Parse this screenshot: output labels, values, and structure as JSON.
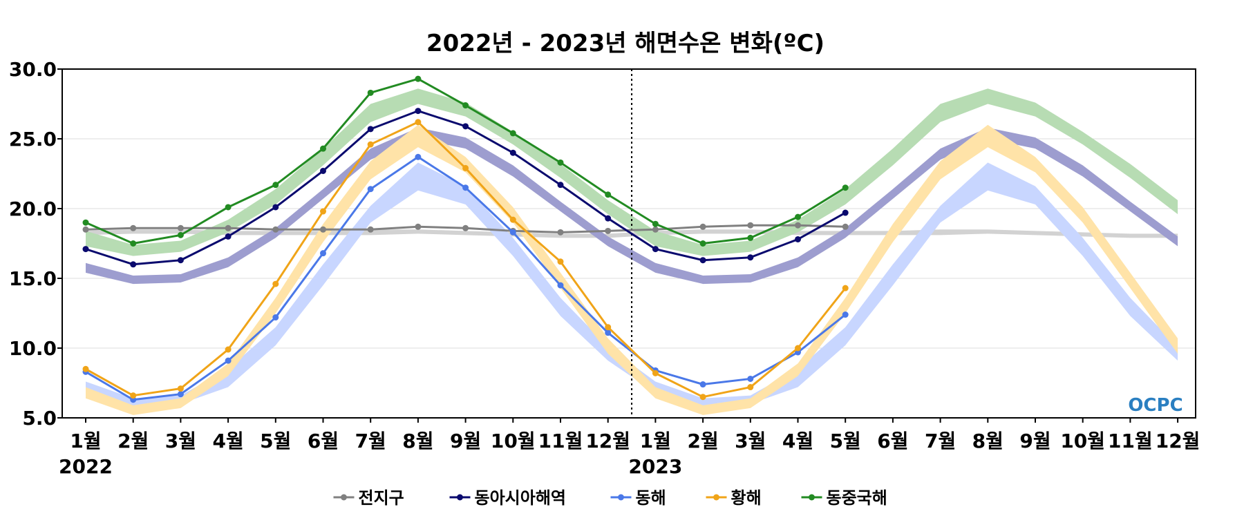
{
  "chart_data": {
    "type": "line",
    "title": "2022년 - 2023년 해면수온 변화(ºC)",
    "xlabel": "",
    "ylabel": "",
    "ylim": [
      5.0,
      30.0
    ],
    "yticks": [
      "5.0",
      "10.0",
      "15.0",
      "20.0",
      "25.0",
      "30.0"
    ],
    "ytick_values": [
      5,
      10,
      15,
      20,
      25,
      30
    ],
    "x_tick_labels": [
      "1월",
      "2월",
      "3월",
      "4월",
      "5월",
      "6월",
      "7월",
      "8월",
      "9월",
      "10월",
      "11월",
      "12월",
      "1월",
      "2월",
      "3월",
      "4월",
      "5월",
      "6월",
      "7월",
      "8월",
      "9월",
      "10월",
      "11월",
      "12월"
    ],
    "year_labels": [
      {
        "label": "2022",
        "month_index": 0
      },
      {
        "label": "2023",
        "month_index": 12
      }
    ],
    "year_divider_after_month": 11.5,
    "grid": true,
    "legend_position": "bottom-center",
    "series": [
      {
        "name": "전지구",
        "color": "#808080",
        "values": [
          18.5,
          18.6,
          18.6,
          18.6,
          18.5,
          18.5,
          18.5,
          18.7,
          18.6,
          18.4,
          18.3,
          18.4,
          18.5,
          18.7,
          18.8,
          18.8,
          18.7
        ]
      },
      {
        "name": "동아시아해역",
        "color": "#0a0a6e",
        "values": [
          17.1,
          16.0,
          16.3,
          18.0,
          20.1,
          22.7,
          25.7,
          27.0,
          25.9,
          24.0,
          21.7,
          19.3,
          17.1,
          16.3,
          16.5,
          17.8,
          19.7
        ]
      },
      {
        "name": "동해",
        "color": "#4a78e8",
        "values": [
          8.3,
          6.3,
          6.7,
          9.1,
          12.2,
          16.8,
          21.4,
          23.7,
          21.5,
          18.3,
          14.5,
          11.1,
          8.4,
          7.4,
          7.8,
          9.7,
          12.4
        ]
      },
      {
        "name": "황해",
        "color": "#f0a418",
        "values": [
          8.5,
          6.6,
          7.1,
          9.9,
          14.6,
          19.8,
          24.6,
          26.2,
          22.9,
          19.2,
          16.2,
          11.5,
          8.2,
          6.5,
          7.2,
          10.0,
          14.3
        ]
      },
      {
        "name": "동중국해",
        "color": "#228b22",
        "values": [
          19.0,
          17.5,
          18.1,
          20.1,
          21.7,
          24.3,
          28.3,
          29.3,
          27.4,
          25.4,
          23.3,
          21.0,
          18.9,
          17.5,
          17.9,
          19.4,
          21.5
        ]
      }
    ],
    "normal_bands": [
      {
        "series": "전지구",
        "color": "#d2d2d2",
        "low": [
          18.1,
          18.2,
          18.2,
          18.1,
          18.1,
          18.1,
          18.1,
          18.2,
          18.1,
          18.0,
          17.9,
          17.9,
          18.1,
          18.2,
          18.2,
          18.1,
          18.1,
          18.1,
          18.1,
          18.2,
          18.1,
          18.0,
          17.9,
          17.9
        ],
        "high": [
          18.4,
          18.5,
          18.5,
          18.4,
          18.4,
          18.4,
          18.5,
          18.5,
          18.4,
          18.3,
          18.2,
          18.2,
          18.4,
          18.5,
          18.5,
          18.4,
          18.4,
          18.4,
          18.5,
          18.5,
          18.4,
          18.3,
          18.2,
          18.2
        ]
      },
      {
        "series": "동아시아해역",
        "color": "#9d9dcf",
        "low": [
          15.4,
          14.6,
          14.7,
          15.8,
          17.9,
          20.7,
          23.5,
          25.0,
          24.3,
          22.3,
          19.8,
          17.3,
          15.4,
          14.6,
          14.7,
          15.8,
          17.9,
          20.7,
          23.5,
          25.0,
          24.3,
          22.3,
          19.8,
          17.3
        ],
        "high": [
          16.1,
          15.2,
          15.3,
          16.5,
          18.6,
          21.4,
          24.3,
          25.8,
          25.1,
          23.1,
          20.5,
          18.0,
          16.1,
          15.2,
          15.3,
          16.5,
          18.6,
          21.4,
          24.3,
          25.8,
          25.1,
          23.1,
          20.5,
          18.0
        ]
      },
      {
        "series": "동해",
        "color": "#c8d6ff",
        "low": [
          6.8,
          5.8,
          6.0,
          7.2,
          10.2,
          14.5,
          19.0,
          21.3,
          20.3,
          16.6,
          12.3,
          9.1,
          6.8,
          5.8,
          6.0,
          7.2,
          10.2,
          14.5,
          19.0,
          21.3,
          20.3,
          16.6,
          12.3,
          9.1
        ],
        "high": [
          7.6,
          6.4,
          6.6,
          8.5,
          11.5,
          16.0,
          20.2,
          23.3,
          21.6,
          17.9,
          13.6,
          10.1,
          7.6,
          6.4,
          6.6,
          8.5,
          11.5,
          16.0,
          20.2,
          23.3,
          21.6,
          17.9,
          13.6,
          10.1
        ]
      },
      {
        "series": "황해",
        "color": "#ffe3a8",
        "low": [
          6.4,
          5.2,
          5.7,
          8.0,
          12.5,
          17.6,
          22.1,
          24.4,
          22.6,
          19.0,
          14.3,
          9.6,
          6.4,
          5.2,
          5.7,
          8.0,
          12.5,
          17.6,
          22.1,
          24.4,
          22.6,
          19.0,
          14.3,
          9.6
        ],
        "high": [
          7.2,
          5.9,
          6.4,
          8.9,
          13.6,
          18.9,
          23.4,
          26.0,
          23.7,
          20.1,
          15.4,
          10.7,
          7.2,
          5.9,
          6.4,
          8.9,
          13.6,
          18.9,
          23.4,
          26.0,
          23.7,
          20.1,
          15.4,
          10.7
        ]
      },
      {
        "series": "동중국해",
        "color": "#b7dcb3",
        "low": [
          17.3,
          16.6,
          16.9,
          18.3,
          20.3,
          23.1,
          26.2,
          27.5,
          26.6,
          24.6,
          22.2,
          19.6,
          17.3,
          16.6,
          16.9,
          18.3,
          20.3,
          23.1,
          26.2,
          27.5,
          26.6,
          24.6,
          22.2,
          19.6
        ],
        "high": [
          18.4,
          17.4,
          17.7,
          19.2,
          21.4,
          24.3,
          27.5,
          28.6,
          27.6,
          25.5,
          23.2,
          20.6,
          18.4,
          17.4,
          17.7,
          19.2,
          21.4,
          24.3,
          27.5,
          28.6,
          27.6,
          25.5,
          23.2,
          20.6
        ]
      }
    ],
    "logo_text": "OCPC"
  }
}
